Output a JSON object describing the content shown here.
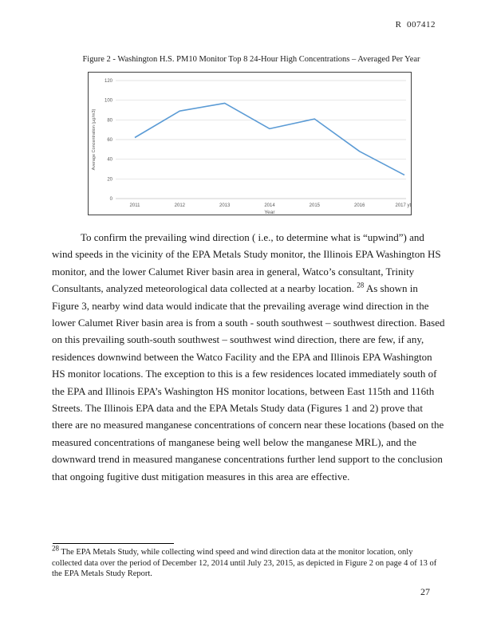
{
  "header": {
    "doc_number": "R  007412"
  },
  "figure": {
    "caption": "Figure 2 - Washington H.S. PM10 Monitor Top 8 24-Hour High Concentrations – Averaged Per Year"
  },
  "chart_data": {
    "type": "line",
    "title": "",
    "categories": [
      "2011",
      "2012",
      "2013",
      "2014",
      "2015",
      "2016",
      "2017 ytd"
    ],
    "values": [
      62,
      89,
      97,
      71,
      81,
      48,
      24
    ],
    "xlabel": "Year",
    "ylabel": "Average Concentration (µg/m3)",
    "ylim": [
      0,
      120
    ],
    "yticks": [
      0,
      20,
      40,
      60,
      80,
      100,
      120
    ],
    "grid": true,
    "legend": "none",
    "line_color": "#5b9bd5",
    "gridline_color": "#d9d9d9",
    "axis_line_color": "#bfbfbf"
  },
  "body": {
    "p1_before": "To confirm the prevailing wind direction ( i.e., to determine what is “upwind”) and wind speeds in the vicinity of the EPA Metals Study monitor, the Illinois EPA Washington HS monitor, and the lower Calumet River basin area in general, Watco’s consultant, Trinity Consultants, analyzed meteorological data collected at a nearby location. ",
    "footnote_ref": "28",
    "p1_after": "  As shown in Figure 3, nearby wind data would indicate that the prevailing average wind direction in the lower Calumet River basin area is from a south - south southwest – southwest direction. Based on this prevailing south-south southwest – southwest wind direction, there are few, if any, residences downwind between the Watco Facility and the EPA and Illinois EPA Washington HS monitor locations. The exception to this is a few residences located immediately south of the EPA and Illinois EPA’s Washington HS monitor locations, between East 115th and 116th Streets. The Illinois EPA data and the EPA Metals Study data (Figures 1 and 2) prove that there are no measured manganese concentrations of concern near these locations (based on the measured concentrations of manganese being well below the manganese MRL), and the downward trend in measured manganese concentrations further lend support to the conclusion that ongoing fugitive dust mitigation measures in this area are effective."
  },
  "footnote": {
    "number": "28",
    "text": " The EPA Metals Study, while collecting wind speed and wind direction data at the monitor location, only collected data over the period of December 12, 2014 until July 23, 2015, as depicted in Figure 2 on page 4 of 13 of the EPA Metals Study Report."
  },
  "page_number": "27"
}
